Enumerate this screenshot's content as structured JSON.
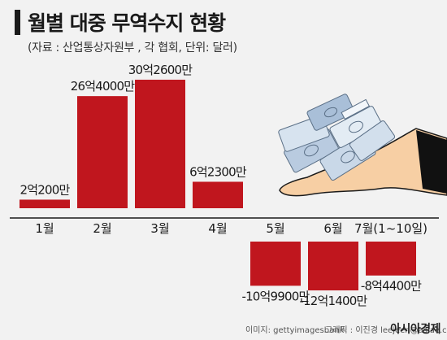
{
  "header": {
    "title": "월별 대중 무역수지 현황",
    "subtitle": "(자료 : 산업통상자원부 , 각 협회, 단위: 달러)"
  },
  "footer": {
    "image_credit": "이미지: gettyimagesbank",
    "graphic_credit": "그래픽 : 이진경 leejeen@asiae.co.kr",
    "brand": "아시아경제"
  },
  "colors": {
    "bar": "#c0161e",
    "background": "#f2f2f2",
    "axis": "#1a1a1a"
  },
  "illustration": {
    "name": "hand-holding-money-icon"
  },
  "chart_data": {
    "type": "bar",
    "categories": [
      "1월",
      "2월",
      "3월",
      "4월",
      "5월",
      "6월",
      "7월(1~10일)"
    ],
    "values": [
      2.02,
      26.4,
      30.26,
      6.23,
      -10.99,
      -12.14,
      -8.44
    ],
    "data_labels": [
      "2억200만",
      "26억4000만",
      "30억2600만",
      "6억2300만",
      "-10억9900만",
      "-12억1400만",
      "-8억4400만"
    ],
    "title": "월별 대중 무역수지 현황",
    "xlabel": "",
    "ylabel": "",
    "ylim": [
      -14,
      31
    ],
    "grid": false,
    "legend": "none"
  }
}
